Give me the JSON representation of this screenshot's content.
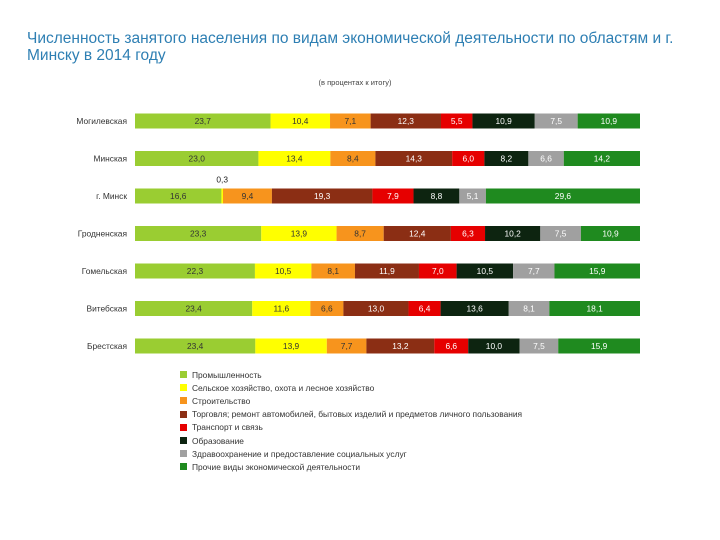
{
  "chart_data": {
    "type": "bar",
    "orientation": "horizontal",
    "stacked": true,
    "percent_stacked": true,
    "title": "Численность занятого населения по видам экономической деятельности по областям и г. Минску в 2014 году",
    "subtitle": "(в процентах к итогу)",
    "xlabel": "",
    "ylabel": "",
    "xlim": [
      0,
      100
    ],
    "grid": false,
    "legend_position": "bottom-center",
    "categories": [
      "Могилевская",
      "Минская",
      "г. Минск",
      "Гродненская",
      "Гомельская",
      "Витебская",
      "Брестская"
    ],
    "series": [
      {
        "name": "Промышленность",
        "color": "#9acd32",
        "values": [
          23.7,
          23.0,
          16.6,
          23.3,
          22.3,
          23.4,
          23.4
        ]
      },
      {
        "name": "Сельское хозяйство, охота и лесное хозяйство",
        "color": "#ffff00",
        "values": [
          10.4,
          13.4,
          0.3,
          13.9,
          10.5,
          11.6,
          13.9
        ]
      },
      {
        "name": "Строительство",
        "color": "#f7941d",
        "values": [
          7.1,
          8.4,
          9.4,
          8.7,
          8.1,
          6.6,
          7.7
        ]
      },
      {
        "name": "Торговля; ремонт автомобилей, бытовых изделий и предметов личного пользования",
        "color": "#8b2e14",
        "values": [
          12.3,
          14.3,
          19.3,
          12.4,
          11.9,
          13.0,
          13.2
        ]
      },
      {
        "name": "Транспорт и связь",
        "color": "#e60000",
        "values": [
          5.5,
          6.0,
          7.9,
          6.3,
          7.0,
          6.4,
          6.6
        ]
      },
      {
        "name": "Образование",
        "color": "#0d2410",
        "values": [
          10.9,
          8.2,
          8.8,
          10.2,
          10.5,
          13.6,
          10.0
        ]
      },
      {
        "name": "Здравоохранение и предоставление социальных услуг",
        "color": "#a0a0a0",
        "values": [
          7.5,
          6.6,
          5.1,
          7.5,
          7.7,
          8.1,
          7.5
        ]
      },
      {
        "name": "Прочие виды экономической деятельности",
        "color": "#1f8a1f",
        "values": [
          10.9,
          14.2,
          29.6,
          10.9,
          15.9,
          18.1,
          15.9
        ]
      }
    ],
    "data_labels": [
      [
        "23,7",
        "10,4",
        "7,1",
        "12,3",
        "5,5",
        "10,9",
        "7,5",
        "10,9"
      ],
      [
        "23,0",
        "13,4",
        "8,4",
        "14,3",
        "6,0",
        "8,2",
        "6,6",
        "14,2"
      ],
      [
        "16,6",
        "0,3",
        "9,4",
        "19,3",
        "7,9",
        "8,8",
        "5,1",
        "29,6"
      ],
      [
        "23,3",
        "13,9",
        "8,7",
        "12,4",
        "6,3",
        "10,2",
        "7,5",
        "10,9"
      ],
      [
        "22,3",
        "10,5",
        "8,1",
        "11,9",
        "7,0",
        "10,5",
        "7,7",
        "15,9"
      ],
      [
        "23,4",
        "11,6",
        "6,6",
        "13,0",
        "6,4",
        "13,6",
        "8,1",
        "18,1"
      ],
      [
        "23,4",
        "13,9",
        "7,7",
        "13,2",
        "6,6",
        "10,0",
        "7,5",
        "15,9"
      ]
    ]
  }
}
